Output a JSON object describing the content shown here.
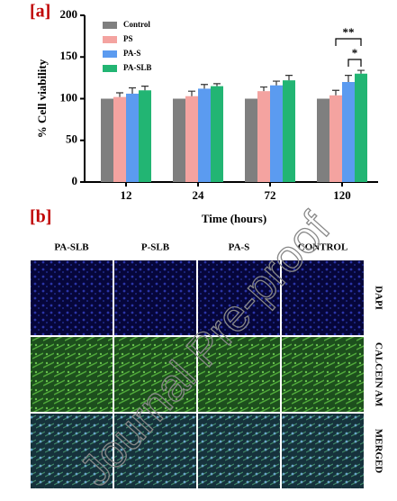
{
  "chart_data": {
    "type": "bar",
    "categories": [
      "12",
      "24",
      "72",
      "120"
    ],
    "series": [
      {
        "name": "Control",
        "color": "#7f7f7f",
        "values": [
          100,
          100,
          100,
          100
        ],
        "errors": [
          0,
          0,
          0,
          0
        ]
      },
      {
        "name": "PS",
        "color": "#f4a3a0",
        "values": [
          102,
          103,
          109,
          104
        ],
        "errors": [
          5,
          6,
          5,
          6
        ]
      },
      {
        "name": "PA-S",
        "color": "#5b9bf0",
        "values": [
          106,
          112,
          116,
          120
        ],
        "errors": [
          7,
          5,
          5,
          8
        ]
      },
      {
        "name": "PA-SLB",
        "color": "#22b573",
        "values": [
          110,
          115,
          122,
          130
        ],
        "errors": [
          5,
          3,
          6,
          4
        ]
      }
    ],
    "ylim": [
      0,
      200
    ],
    "yticks": [
      0,
      50,
      100,
      150,
      200
    ],
    "ylabel": "% Cell viability",
    "xlabel": "Time (hours)",
    "annotations": [
      "**",
      "*"
    ]
  },
  "figure": {
    "panel_a_label": "[a]",
    "panel_b_label": "[b]",
    "watermark": "Journal Pre-proof",
    "micrographs": {
      "columns": [
        "PA-SLB",
        "P-SLB",
        "PA-S",
        "CONTROL"
      ],
      "rows": [
        "DAPI",
        "CALCEIN AM",
        "MERGED"
      ]
    }
  }
}
